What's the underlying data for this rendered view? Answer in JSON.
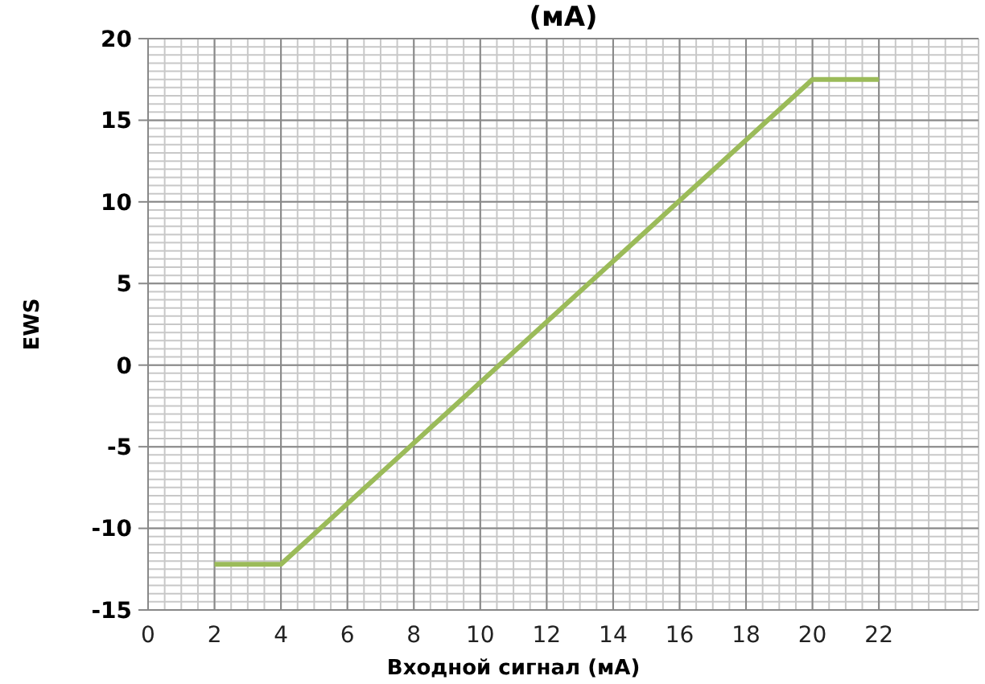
{
  "chart_data": {
    "type": "line",
    "title": "(мА)",
    "xlabel": "Входной сигнал (мА)",
    "ylabel": "EWS",
    "x": [
      2,
      4,
      20,
      22
    ],
    "series": [
      {
        "color": "#9bbb59",
        "values": [
          -12.2,
          -12.2,
          17.5,
          17.5
        ]
      }
    ],
    "xlim": [
      0,
      25
    ],
    "xticks": [
      0,
      2,
      4,
      6,
      8,
      10,
      12,
      14,
      16,
      18,
      20,
      22
    ],
    "ylim": [
      -15,
      20
    ],
    "yticks": [
      -15,
      -10,
      -5,
      0,
      5,
      10,
      15,
      20
    ],
    "grid": true,
    "marker": "none",
    "line_style": "solid"
  }
}
